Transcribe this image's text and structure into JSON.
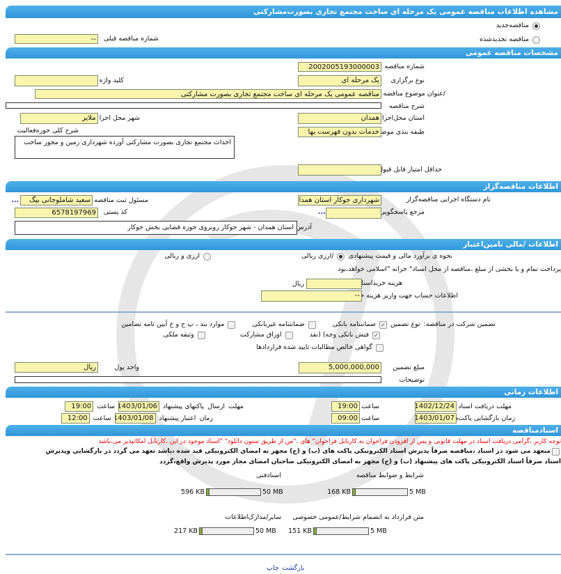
{
  "page_title": "مشاهده اطلاعات مناقصه عمومی یک مرحله ای ساخت مجتمع تجاری بصورت‌مشارکتی",
  "tender_type": {
    "new_label": "مناقصه‌جدید",
    "renewed_label": "مناقصه تجدیدشده",
    "selected": "new",
    "prev_number_label": "شماره مناقصه قبلی",
    "prev_number_value": "--"
  },
  "general": {
    "header": "مشخصات مناقصه عمومی",
    "number_label": "شماره مناقصه",
    "number_value": "2002005193000003",
    "holding_type_label": "نوع برگزاری",
    "holding_type_value": "یک مرحله ای",
    "keyword_label": "کلید واژه",
    "keyword_value": "",
    "title_label": "/عنوان موضوع مناقصه",
    "title_value": "مناقصه عمومی یک مرحله ای ساخت مجتمع تجاری بصورت مشارکتی",
    "description_label": "شرح مناقصه",
    "description_value": "",
    "province_label": "استان محل‌اجرا",
    "province_value": "همدان",
    "city_label": "شهر محل اجرا",
    "city_value": "ملایر",
    "category_label": "طبقه بندی موضوعی",
    "category_value": "خدمات بدون فهرست بها",
    "activity_label": "شرح کلی حوزه‌فعالیت",
    "activity_value": "احداث مجتمع تجاری بصورت مشارکتی آورده شهرداری زمین و مجوز ساخت",
    "min_score_label": "حداقل امتیاز قابل قبول ارزیابی /فنی بازرگانی",
    "min_score_value": ""
  },
  "organizer": {
    "header": "اطلاعات مناقصه‌گزار",
    "org_label": "نام دستگاه اجرایی مناقصه‌گزار",
    "org_value": "شهرداری جوکار استان همدان",
    "registrar_label": "مسئول ثبت مناقصه",
    "registrar_value": "سعید شاملوجانی بیگ",
    "more": "...",
    "ref_label": "مرجع پاسخگویی",
    "ref_value": "",
    "postal_label": "کد پستی",
    "postal_value": "6578197969",
    "address_label": "آدرس",
    "address_value": "استان همدان - شهر جوکار روبروی حوزه قضایی بخش جوکار"
  },
  "finance": {
    "header": "اطلاعات /مالی تامین‌اعتبار",
    "estimate_label": "نحوه ی برآورد مالی و قیمت پیشنهادی",
    "opt_rial": "/ارزی ریالی",
    "opt_mixed": "ارزی و ریالی",
    "selected": "rial",
    "payment_note": "پرداخت تمام و یا بخشی از مبلغ ،مناقصه از محل اسناد\" خزانه \"اسلامی خواهد،بود",
    "doc_fee_label": "هزینه خریداسناد",
    "doc_fee_value": "",
    "doc_fee_unit": "ریال",
    "account_label": "اطلاعات حساب جهت واریز هزینه خریداسناد",
    "account_value": "--",
    "guarantee_label": "تضمین شرکت در مناقصه:",
    "guarantee_type_label": "نوع تضمین",
    "guarantee_options": [
      {
        "label": "ضمانتنامه بانکی",
        "checked": true
      },
      {
        "label": "ضمانتنامه غیربانکی",
        "checked": false
      },
      {
        "label": "موارد بند ، پ ح و خ آیین نامه تضامین",
        "checked": false
      },
      {
        "label": "فیش بانکی وجه) (نقد",
        "checked": true
      },
      {
        "label": "اوراق مشارکت",
        "checked": false
      },
      {
        "label": "وثیقه ملکی",
        "checked": false
      },
      {
        "label": "گواهی خالص مطالبات تایید شده قراردادها",
        "checked": false
      }
    ],
    "amount_label": "مبلغ تضمین",
    "amount_value": "5,000,000,000",
    "currency_label": "واحد پول",
    "currency_value": "ریال",
    "notes_label": "توضیحات",
    "notes_value": ""
  },
  "timing": {
    "header": "اطلاعات زمانی",
    "doc_deadline_label": "مهلت دریافت اسناد",
    "doc_deadline_date": "1402/12/24",
    "doc_deadline_time": "19:00",
    "time_label": "ساعت",
    "submit_label_1": "مهلت",
    "submit_label_2": "ارسال",
    "submit_label_3": "پاکتهای پیشنهاد",
    "submit_date": "1403/01/06",
    "submit_time": "19:00",
    "opening_label": "زمان بازگشایی پاکت‌ها",
    "opening_date": "1403/01/07",
    "opening_time": "09:00",
    "validity_label_1": "زمان",
    "validity_label_2": "اعتبار پیشنهاد",
    "validity_date": "1403/01/08",
    "validity_time": "12:00"
  },
  "documents": {
    "header": "اسنادمناقصه",
    "warning": "توجه کاربر ،گرامی دریافت اسناد در مهلت قانونی و پس از افزودن فراخوان به کارتابل فراخوان\" های ،\"من از طریق ستون دانلود\" \"اسناد موجود در این ،کارتابل امکانپذیر می،باشد",
    "commitment_line1": "متعهد می شود در اسناد ،مناقصه صرفاً پذیرش اسناد الکترونیکی پاکت های (ب) و (ج) مجهز به امضای الکترونیکی قید شده ،باشد تعهد می گردد در بازگشایی وپذیرش",
    "commitment_line2": "اسناد صرفاً اسناد الکترونیکی پاکت های پیشنهاد (ب) و (ج) مجهز به امضای الکترونیکی صاحبان امضای مجاز مورد پذیرش واقع،گردد",
    "files": [
      {
        "label": "شرایط و ضوابط مناقصه",
        "size": "168 KB",
        "max": "5 MB",
        "fill_fraction": 0.033
      },
      {
        "label": "اسنادفنی",
        "size": "596 KB",
        "max": "50 MB",
        "fill_fraction": 0.012
      },
      {
        "label": "متن قرارداد به انضمام شرایط/عمومی خصوصی",
        "size": "151 KB",
        "max": "5 MB",
        "fill_fraction": 0.03
      },
      {
        "label": "سایر/مدارک‌اطلاعات",
        "size": "217 KB",
        "max": "50 MB",
        "fill_fraction": 0.004
      }
    ]
  },
  "footer": {
    "print_label": "چاپ",
    "back_label": "بازگشت"
  },
  "colors": {
    "header_blue": "#2f97d9",
    "field_yellow": "#f9f5ad",
    "warning_red": "#e00000",
    "link_blue": "#1a3aa8"
  }
}
